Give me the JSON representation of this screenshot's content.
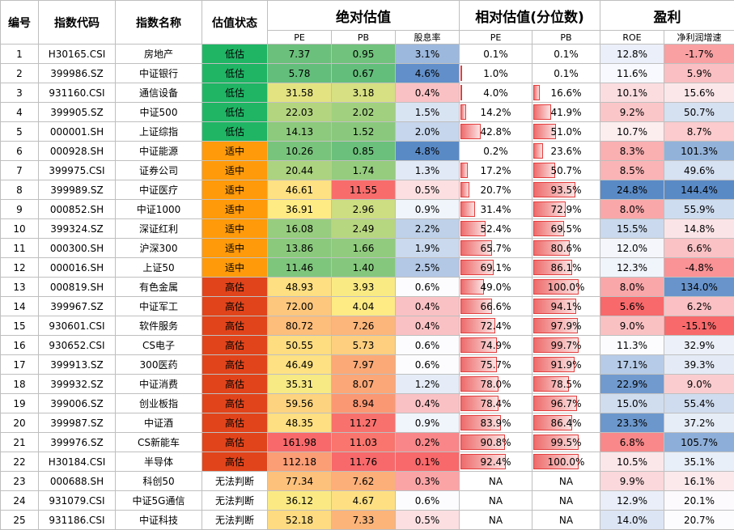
{
  "headers": {
    "index": "编号",
    "code": "指数代码",
    "name": "指数名称",
    "status": "估值状态",
    "absolute": "绝对估值",
    "relative": "相对估值(分位数)",
    "profit": "盈利",
    "pe": "PE",
    "pb": "PB",
    "dividend": "股息率",
    "pe_pct": "PE",
    "pb_pct": "PB",
    "roe": "ROE",
    "growth": "净利润增速"
  },
  "colors": {
    "status_low": "#1fb565",
    "status_mid": "#ff9a0a",
    "status_high": "#e1441b",
    "scale_green": "#63be7b",
    "scale_yellow": "#ffeb84",
    "scale_red": "#f8696b",
    "scale_blue": "#5a8ac6",
    "databar": "#e43e3e"
  },
  "rows": [
    {
      "no": "1",
      "code": "H30165.CSI",
      "name": "房地产",
      "status": "低估",
      "pe": "7.37",
      "pb": "0.95",
      "dy": "3.1%",
      "pe_pct": "0.1%",
      "pb_pct": "0.1%",
      "roe": "12.8%",
      "growth": "-1.7%"
    },
    {
      "no": "2",
      "code": "399986.SZ",
      "name": "中证银行",
      "status": "低估",
      "pe": "5.78",
      "pb": "0.67",
      "dy": "4.6%",
      "pe_pct": "1.0%",
      "pb_pct": "0.1%",
      "roe": "11.6%",
      "growth": "5.9%"
    },
    {
      "no": "3",
      "code": "931160.CSI",
      "name": "通信设备",
      "status": "低估",
      "pe": "31.58",
      "pb": "3.18",
      "dy": "0.4%",
      "pe_pct": "4.0%",
      "pb_pct": "16.6%",
      "roe": "10.1%",
      "growth": "15.6%"
    },
    {
      "no": "4",
      "code": "399905.SZ",
      "name": "中证500",
      "status": "低估",
      "pe": "22.03",
      "pb": "2.02",
      "dy": "1.5%",
      "pe_pct": "14.2%",
      "pb_pct": "41.9%",
      "roe": "9.2%",
      "growth": "50.7%"
    },
    {
      "no": "5",
      "code": "000001.SH",
      "name": "上证综指",
      "status": "低估",
      "pe": "14.13",
      "pb": "1.52",
      "dy": "2.0%",
      "pe_pct": "42.8%",
      "pb_pct": "51.0%",
      "roe": "10.7%",
      "growth": "8.7%"
    },
    {
      "no": "6",
      "code": "000928.SH",
      "name": "中证能源",
      "status": "适中",
      "pe": "10.26",
      "pb": "0.85",
      "dy": "4.8%",
      "pe_pct": "0.2%",
      "pb_pct": "23.6%",
      "roe": "8.3%",
      "growth": "101.3%"
    },
    {
      "no": "7",
      "code": "399975.CSI",
      "name": "证券公司",
      "status": "适中",
      "pe": "20.44",
      "pb": "1.74",
      "dy": "1.3%",
      "pe_pct": "17.2%",
      "pb_pct": "50.7%",
      "roe": "8.5%",
      "growth": "49.6%"
    },
    {
      "no": "8",
      "code": "399989.SZ",
      "name": "中证医疗",
      "status": "适中",
      "pe": "46.61",
      "pb": "11.55",
      "dy": "0.5%",
      "pe_pct": "20.7%",
      "pb_pct": "93.5%",
      "roe": "24.8%",
      "growth": "144.4%"
    },
    {
      "no": "9",
      "code": "000852.SH",
      "name": "中证1000",
      "status": "适中",
      "pe": "36.91",
      "pb": "2.96",
      "dy": "0.9%",
      "pe_pct": "31.4%",
      "pb_pct": "72.9%",
      "roe": "8.0%",
      "growth": "55.9%"
    },
    {
      "no": "10",
      "code": "399324.SZ",
      "name": "深证红利",
      "status": "适中",
      "pe": "16.08",
      "pb": "2.49",
      "dy": "2.2%",
      "pe_pct": "52.4%",
      "pb_pct": "69.5%",
      "roe": "15.5%",
      "growth": "14.8%"
    },
    {
      "no": "11",
      "code": "000300.SH",
      "name": "沪深300",
      "status": "适中",
      "pe": "13.86",
      "pb": "1.66",
      "dy": "1.9%",
      "pe_pct": "65.7%",
      "pb_pct": "80.6%",
      "roe": "12.0%",
      "growth": "6.6%"
    },
    {
      "no": "12",
      "code": "000016.SH",
      "name": "上证50",
      "status": "适中",
      "pe": "11.46",
      "pb": "1.40",
      "dy": "2.5%",
      "pe_pct": "69.1%",
      "pb_pct": "86.1%",
      "roe": "12.3%",
      "growth": "-4.8%"
    },
    {
      "no": "13",
      "code": "000819.SH",
      "name": "有色金属",
      "status": "高估",
      "pe": "48.93",
      "pb": "3.93",
      "dy": "0.6%",
      "pe_pct": "49.0%",
      "pb_pct": "100.0%",
      "roe": "8.0%",
      "growth": "134.0%"
    },
    {
      "no": "14",
      "code": "399967.SZ",
      "name": "中证军工",
      "status": "高估",
      "pe": "72.00",
      "pb": "4.04",
      "dy": "0.4%",
      "pe_pct": "66.6%",
      "pb_pct": "94.1%",
      "roe": "5.6%",
      "growth": "6.2%"
    },
    {
      "no": "15",
      "code": "930601.CSI",
      "name": "软件服务",
      "status": "高估",
      "pe": "80.72",
      "pb": "7.26",
      "dy": "0.4%",
      "pe_pct": "72.4%",
      "pb_pct": "97.9%",
      "roe": "9.0%",
      "growth": "-15.1%"
    },
    {
      "no": "16",
      "code": "930652.CSI",
      "name": "CS电子",
      "status": "高估",
      "pe": "50.55",
      "pb": "5.73",
      "dy": "0.6%",
      "pe_pct": "74.9%",
      "pb_pct": "99.7%",
      "roe": "11.3%",
      "growth": "32.9%"
    },
    {
      "no": "17",
      "code": "399913.SZ",
      "name": "300医药",
      "status": "高估",
      "pe": "46.49",
      "pb": "7.97",
      "dy": "0.6%",
      "pe_pct": "75.7%",
      "pb_pct": "91.9%",
      "roe": "17.1%",
      "growth": "39.3%"
    },
    {
      "no": "18",
      "code": "399932.SZ",
      "name": "中证消费",
      "status": "高估",
      "pe": "35.31",
      "pb": "8.07",
      "dy": "1.2%",
      "pe_pct": "78.0%",
      "pb_pct": "78.5%",
      "roe": "22.9%",
      "growth": "9.0%"
    },
    {
      "no": "19",
      "code": "399006.SZ",
      "name": "创业板指",
      "status": "高估",
      "pe": "59.56",
      "pb": "8.94",
      "dy": "0.4%",
      "pe_pct": "78.4%",
      "pb_pct": "96.7%",
      "roe": "15.0%",
      "growth": "55.4%"
    },
    {
      "no": "20",
      "code": "399987.SZ",
      "name": "中证酒",
      "status": "高估",
      "pe": "48.35",
      "pb": "11.27",
      "dy": "0.9%",
      "pe_pct": "83.9%",
      "pb_pct": "86.4%",
      "roe": "23.3%",
      "growth": "37.2%"
    },
    {
      "no": "21",
      "code": "399976.SZ",
      "name": "CS新能车",
      "status": "高估",
      "pe": "161.98",
      "pb": "11.03",
      "dy": "0.2%",
      "pe_pct": "90.8%",
      "pb_pct": "99.5%",
      "roe": "6.8%",
      "growth": "105.7%"
    },
    {
      "no": "22",
      "code": "H30184.CSI",
      "name": "半导体",
      "status": "高估",
      "pe": "112.18",
      "pb": "11.76",
      "dy": "0.1%",
      "pe_pct": "92.4%",
      "pb_pct": "100.0%",
      "roe": "10.5%",
      "growth": "35.1%"
    },
    {
      "no": "23",
      "code": "000688.SH",
      "name": "科创50",
      "status": "无法判断",
      "pe": "77.34",
      "pb": "7.62",
      "dy": "0.3%",
      "pe_pct": "NA",
      "pb_pct": "NA",
      "roe": "9.9%",
      "growth": "16.1%"
    },
    {
      "no": "24",
      "code": "931079.CSI",
      "name": "中证5G通信",
      "status": "无法判断",
      "pe": "36.12",
      "pb": "4.67",
      "dy": "0.6%",
      "pe_pct": "NA",
      "pb_pct": "NA",
      "roe": "12.9%",
      "growth": "20.1%"
    },
    {
      "no": "25",
      "code": "931186.CSI",
      "name": "中证科技",
      "status": "无法判断",
      "pe": "52.18",
      "pb": "7.33",
      "dy": "0.5%",
      "pe_pct": "NA",
      "pb_pct": "NA",
      "roe": "14.0%",
      "growth": "20.7%"
    }
  ]
}
